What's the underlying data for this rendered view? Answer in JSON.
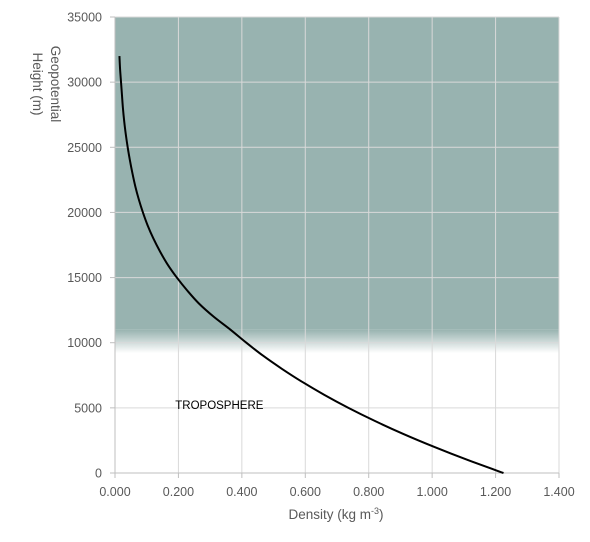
{
  "chart_data": {
    "type": "line",
    "xlabel": "Density (kg m",
    "xlabel_sup": "-3",
    "xlabel_close": ")",
    "ylabel_line1": "Geopotential",
    "ylabel_line2": "Height (m)",
    "xlim": [
      0,
      1.4
    ],
    "ylim": [
      0,
      35000
    ],
    "x_ticks": [
      "0.000",
      "0.200",
      "0.400",
      "0.600",
      "0.800",
      "1.000",
      "1.200",
      "1.400"
    ],
    "y_ticks": [
      "0",
      "5000",
      "10000",
      "15000",
      "20000",
      "25000",
      "30000",
      "35000"
    ],
    "grid": true,
    "legend": "none",
    "annotations": [
      {
        "text": "TROPOSPHERE",
        "x": 0.19,
        "y": 4900
      }
    ],
    "shaded_region": {
      "y_from": 11000,
      "y_to": 35000,
      "color": "#98b3b0",
      "fade_to_y": 9200
    },
    "series": [
      {
        "color": "#000000",
        "points": [
          {
            "x": 1.225,
            "y": 0
          },
          {
            "x": 1.112,
            "y": 1000
          },
          {
            "x": 1.007,
            "y": 2000
          },
          {
            "x": 0.909,
            "y": 3000
          },
          {
            "x": 0.819,
            "y": 4000
          },
          {
            "x": 0.736,
            "y": 5000
          },
          {
            "x": 0.66,
            "y": 6000
          },
          {
            "x": 0.59,
            "y": 7000
          },
          {
            "x": 0.526,
            "y": 8000
          },
          {
            "x": 0.467,
            "y": 9000
          },
          {
            "x": 0.414,
            "y": 10000
          },
          {
            "x": 0.364,
            "y": 11000
          },
          {
            "x": 0.311,
            "y": 12000
          },
          {
            "x": 0.265,
            "y": 13000
          },
          {
            "x": 0.228,
            "y": 14000
          },
          {
            "x": 0.195,
            "y": 15000
          },
          {
            "x": 0.166,
            "y": 16000
          },
          {
            "x": 0.142,
            "y": 17000
          },
          {
            "x": 0.121,
            "y": 18000
          },
          {
            "x": 0.103,
            "y": 19000
          },
          {
            "x": 0.088,
            "y": 20000
          },
          {
            "x": 0.075,
            "y": 21000
          },
          {
            "x": 0.064,
            "y": 22000
          },
          {
            "x": 0.055,
            "y": 23000
          },
          {
            "x": 0.047,
            "y": 24000
          },
          {
            "x": 0.04,
            "y": 25000
          },
          {
            "x": 0.034,
            "y": 26000
          },
          {
            "x": 0.029,
            "y": 27000
          },
          {
            "x": 0.025,
            "y": 28000
          },
          {
            "x": 0.022,
            "y": 29000
          },
          {
            "x": 0.019,
            "y": 30000
          },
          {
            "x": 0.016,
            "y": 31000
          },
          {
            "x": 0.014,
            "y": 32000
          }
        ]
      }
    ]
  }
}
